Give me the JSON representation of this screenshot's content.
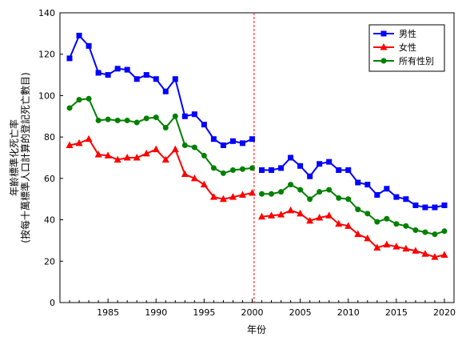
{
  "chart_data": {
    "type": "line",
    "xlabel": "年份",
    "ylabel_line1": "年齡標準化死亡率",
    "ylabel_line2": "(按每十萬標準人口計算的登記死亡數目)",
    "xlim": [
      1980,
      2021
    ],
    "ylim": [
      0,
      140
    ],
    "x_ticks": [
      1985,
      1990,
      1995,
      2000,
      2005,
      2010,
      2015,
      2020
    ],
    "y_ticks": [
      0,
      20,
      40,
      60,
      80,
      100,
      120,
      140
    ],
    "break_year": 2000.2,
    "break_color": "#ff0000",
    "grid": false,
    "legend_position": "top-right",
    "x": [
      1981,
      1982,
      1983,
      1984,
      1985,
      1986,
      1987,
      1988,
      1989,
      1990,
      1991,
      1992,
      1993,
      1994,
      1995,
      1996,
      1997,
      1998,
      1999,
      2000,
      2001,
      2002,
      2003,
      2004,
      2005,
      2006,
      2007,
      2008,
      2009,
      2010,
      2011,
      2012,
      2013,
      2014,
      2015,
      2016,
      2017,
      2018,
      2019,
      2020
    ],
    "series": [
      {
        "name": "男性",
        "color": "#0000ff",
        "marker": "square",
        "values": [
          118,
          129,
          124,
          111,
          110,
          113,
          112.5,
          108,
          110,
          108,
          102,
          108,
          90,
          91,
          86,
          79,
          76,
          78,
          77,
          79,
          64,
          64,
          65,
          70,
          66,
          61,
          67,
          68,
          64,
          64,
          58,
          57,
          52,
          55,
          51,
          50,
          47,
          46,
          46,
          47
        ]
      },
      {
        "name": "女性",
        "color": "#ff0000",
        "marker": "triangle",
        "values": [
          76,
          77,
          79,
          71.5,
          71,
          69,
          70,
          70,
          72,
          74,
          69,
          74,
          62,
          60,
          57,
          51,
          50,
          51,
          52,
          53,
          41.5,
          42,
          42.5,
          44.5,
          43,
          39.5,
          41,
          42,
          38,
          37,
          33,
          31,
          26.5,
          28,
          27,
          26,
          25,
          23.5,
          22,
          23
        ]
      },
      {
        "name": "所有性別",
        "color": "#008000",
        "marker": "circle",
        "values": [
          94,
          98,
          98.5,
          88,
          88.5,
          88,
          88,
          87,
          89,
          89.5,
          84.5,
          90,
          76,
          75,
          71,
          65,
          62.5,
          64,
          64.5,
          65,
          52.5,
          52.5,
          53.5,
          57,
          54.5,
          50,
          53.5,
          54.5,
          50.5,
          50,
          45,
          43,
          39,
          40.5,
          38,
          37,
          35,
          34,
          33,
          34.5
        ]
      }
    ]
  }
}
